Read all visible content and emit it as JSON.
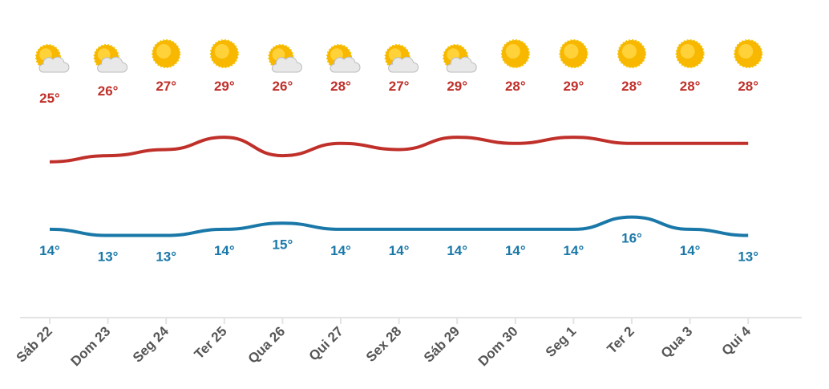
{
  "chart_data": {
    "type": "line",
    "categories": [
      "Sáb 22",
      "Dom 23",
      "Seg 24",
      "Ter 25",
      "Qua 26",
      "Qui 27",
      "Sex 28",
      "Sáb 29",
      "Dom 30",
      "Seg 1",
      "Ter 2",
      "Qua 3",
      "Qui 4"
    ],
    "series": [
      {
        "color": "#c0302a",
        "values": [
          25,
          26,
          27,
          29,
          26,
          28,
          27,
          29,
          28,
          29,
          28,
          28,
          28
        ],
        "value_labels": [
          "25°",
          "26°",
          "27°",
          "29°",
          "26°",
          "28°",
          "27°",
          "29°",
          "28°",
          "29°",
          "28°",
          "28°",
          "28°"
        ]
      },
      {
        "color": "#1a78a8",
        "values": [
          14,
          13,
          13,
          14,
          15,
          14,
          14,
          14,
          14,
          14,
          16,
          14,
          13
        ],
        "value_labels": [
          "14°",
          "13°",
          "13°",
          "14°",
          "15°",
          "14°",
          "14°",
          "14°",
          "14°",
          "14°",
          "16°",
          "14°",
          "13°"
        ]
      }
    ],
    "ylim": [
      0,
      40
    ]
  }
}
